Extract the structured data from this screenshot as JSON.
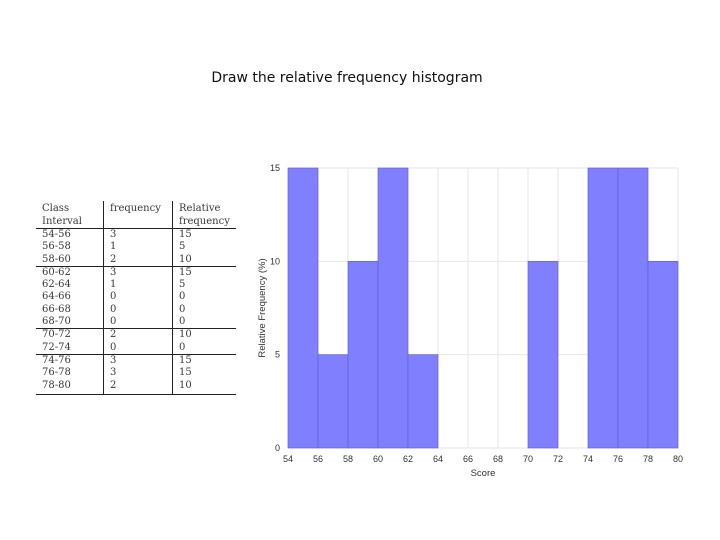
{
  "title": "Draw the relative frequency histogram",
  "table": {
    "headers": {
      "class": [
        "Class",
        "Interval"
      ],
      "frequency": [
        "frequency"
      ],
      "relative": [
        "Relative",
        "frequency"
      ]
    },
    "rows": [
      [
        "54-56",
        "3",
        "15"
      ],
      [
        "56-58",
        "1",
        "5"
      ],
      [
        "58-60",
        "2",
        "10"
      ],
      [
        "60-62",
        "3",
        "15"
      ],
      [
        "62-64",
        "1",
        "5"
      ],
      [
        "64-66",
        "0",
        "0"
      ],
      [
        "66-68",
        "0",
        "0"
      ],
      [
        "68-70",
        "0",
        "0"
      ],
      [
        "70-72",
        "2",
        "10"
      ],
      [
        "72-74",
        "0",
        "0"
      ],
      [
        "74-76",
        "3",
        "15"
      ],
      [
        "76-78",
        "3",
        "15"
      ],
      [
        "78-80",
        "2",
        "10"
      ]
    ]
  },
  "chart_data": {
    "type": "bar",
    "xlabel": "Score",
    "ylabel": "Relative Frequency (%)",
    "bins": [
      [
        54,
        56
      ],
      [
        56,
        58
      ],
      [
        58,
        60
      ],
      [
        60,
        62
      ],
      [
        62,
        64
      ],
      [
        64,
        66
      ],
      [
        66,
        68
      ],
      [
        68,
        70
      ],
      [
        70,
        72
      ],
      [
        72,
        74
      ],
      [
        74,
        76
      ],
      [
        76,
        78
      ],
      [
        78,
        80
      ]
    ],
    "values": [
      15,
      5,
      10,
      15,
      5,
      0,
      0,
      0,
      10,
      0,
      15,
      15,
      10
    ],
    "xticks": [
      "54",
      "56",
      "58",
      "60",
      "62",
      "64",
      "66",
      "68",
      "70",
      "72",
      "74",
      "76",
      "78",
      "80"
    ],
    "yticks": [
      "0",
      "5",
      "10",
      "15"
    ],
    "xlim": [
      54,
      80
    ],
    "ylim": [
      0,
      15
    ],
    "grid": true,
    "bar_color": "#8080ff",
    "bar_edge_color": "#5b5bd8"
  }
}
